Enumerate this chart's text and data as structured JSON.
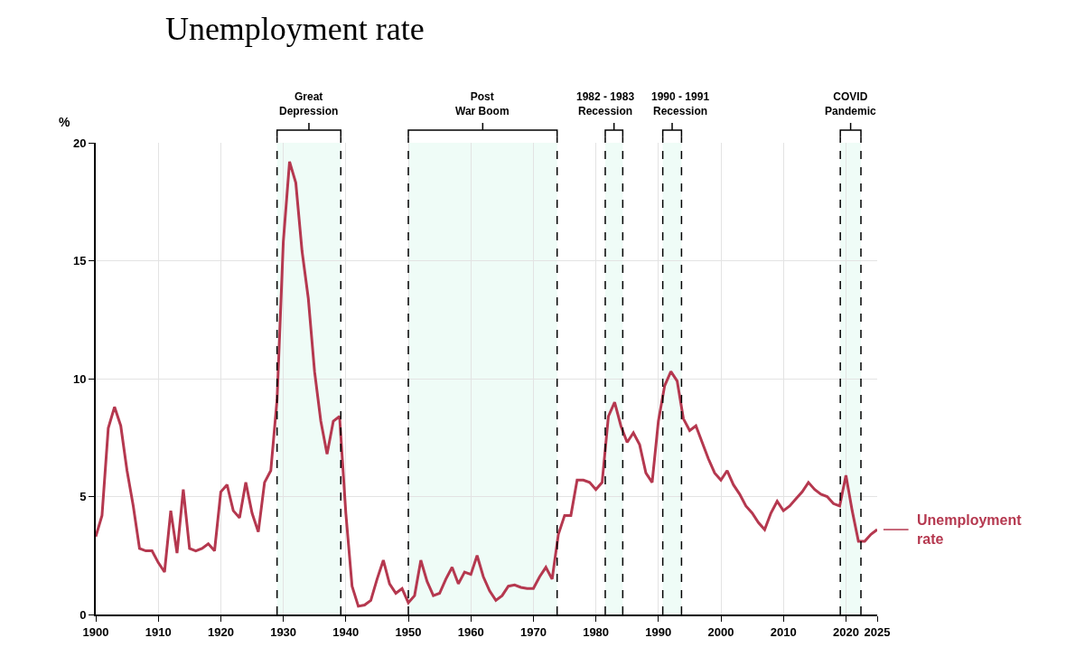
{
  "chart_data": {
    "type": "line",
    "title": "Unemployment rate",
    "ylabel": "%",
    "x": [
      1900,
      1901,
      1902,
      1903,
      1904,
      1905,
      1906,
      1907,
      1908,
      1909,
      1910,
      1911,
      1912,
      1913,
      1914,
      1915,
      1916,
      1917,
      1918,
      1919,
      1920,
      1921,
      1922,
      1923,
      1924,
      1925,
      1926,
      1927,
      1928,
      1929,
      1930,
      1931,
      1932,
      1933,
      1934,
      1935,
      1936,
      1937,
      1938,
      1939,
      1940,
      1941,
      1942,
      1943,
      1944,
      1945,
      1946,
      1947,
      1948,
      1949,
      1950,
      1951,
      1952,
      1953,
      1954,
      1955,
      1956,
      1957,
      1958,
      1959,
      1960,
      1961,
      1962,
      1963,
      1964,
      1965,
      1966,
      1967,
      1968,
      1969,
      1970,
      1971,
      1972,
      1973,
      1974,
      1975,
      1976,
      1977,
      1978,
      1979,
      1980,
      1981,
      1982,
      1983,
      1984,
      1985,
      1986,
      1987,
      1988,
      1989,
      1990,
      1991,
      1992,
      1993,
      1994,
      1995,
      1996,
      1997,
      1998,
      1999,
      2000,
      2001,
      2002,
      2003,
      2004,
      2005,
      2006,
      2007,
      2008,
      2009,
      2010,
      2011,
      2012,
      2013,
      2014,
      2015,
      2016,
      2017,
      2018,
      2019,
      2020,
      2021,
      2022,
      2023,
      2024,
      2025
    ],
    "series": [
      {
        "name": "Unemployment rate",
        "color": "#b5384f",
        "values": [
          3.3,
          4.2,
          7.9,
          8.8,
          8.0,
          6.1,
          4.6,
          2.8,
          2.7,
          2.7,
          2.2,
          1.8,
          4.4,
          2.6,
          5.3,
          2.8,
          2.7,
          2.8,
          3.0,
          2.7,
          5.2,
          5.5,
          4.4,
          4.1,
          5.6,
          4.3,
          3.5,
          5.6,
          6.1,
          9.1,
          15.8,
          19.2,
          18.3,
          15.4,
          13.4,
          10.3,
          8.2,
          6.8,
          8.2,
          8.4,
          4.3,
          1.2,
          0.35,
          0.4,
          0.6,
          1.5,
          2.3,
          1.3,
          0.9,
          1.1,
          0.5,
          0.8,
          2.3,
          1.4,
          0.8,
          0.9,
          1.5,
          2.0,
          1.3,
          1.8,
          1.7,
          2.5,
          1.6,
          1.0,
          0.6,
          0.8,
          1.2,
          1.25,
          1.15,
          1.1,
          1.1,
          1.6,
          2.0,
          1.5,
          3.4,
          4.2,
          4.2,
          5.7,
          5.7,
          5.6,
          5.3,
          5.6,
          8.4,
          9.0,
          8.0,
          7.3,
          7.7,
          7.2,
          6.0,
          5.6,
          8.2,
          9.7,
          10.3,
          9.9,
          8.3,
          7.8,
          8.0,
          7.3,
          6.6,
          6.0,
          5.7,
          6.1,
          5.5,
          5.1,
          4.6,
          4.3,
          3.9,
          3.6,
          4.3,
          4.8,
          4.4,
          4.6,
          4.9,
          5.2,
          5.6,
          5.3,
          5.1,
          5.0,
          4.7,
          4.6,
          5.9,
          4.4,
          3.1,
          3.1,
          3.4,
          3.6
        ]
      }
    ],
    "xlim": [
      1900,
      2025
    ],
    "xticks": [
      1900,
      1910,
      1920,
      1930,
      1940,
      1950,
      1960,
      1970,
      1980,
      1990,
      2000,
      2010,
      2020,
      2025
    ],
    "ylim": [
      0,
      20
    ],
    "yticks": [
      0,
      5,
      10,
      15,
      20
    ],
    "bands": [
      {
        "axis": "x",
        "from": 1929,
        "to": 1939.2,
        "label": "Great\nDepression",
        "color": "#effcf7"
      },
      {
        "axis": "x",
        "from": 1950,
        "to": 1973.8,
        "label": "Post\nWar Boom",
        "color": "#effcf7"
      },
      {
        "axis": "x",
        "from": 1981.5,
        "to": 1984.3,
        "label": "1982 - 1983\nRecession",
        "color": "#effcf7"
      },
      {
        "axis": "x",
        "from": 1990.7,
        "to": 1993.7,
        "label": "1990 - 1991\nRecession",
        "color": "#effcf7"
      },
      {
        "axis": "x",
        "from": 2019.1,
        "to": 2022.4,
        "label": "COVID\nPandemic",
        "color": "#effcf7"
      }
    ],
    "ref_lines": [
      {
        "axis": "x",
        "value": 1929,
        "color": "#000000",
        "line_style": "dashed"
      },
      {
        "axis": "x",
        "value": 1939.2,
        "color": "#000000",
        "line_style": "dashed"
      },
      {
        "axis": "x",
        "value": 1950,
        "color": "#000000",
        "line_style": "dashed"
      },
      {
        "axis": "x",
        "value": 1973.8,
        "color": "#000000",
        "line_style": "dashed"
      },
      {
        "axis": "x",
        "value": 1981.5,
        "color": "#000000",
        "line_style": "dashed"
      },
      {
        "axis": "x",
        "value": 1984.3,
        "color": "#000000",
        "line_style": "dashed"
      },
      {
        "axis": "x",
        "value": 1990.7,
        "color": "#000000",
        "line_style": "dashed"
      },
      {
        "axis": "x",
        "value": 1993.7,
        "color": "#000000",
        "line_style": "dashed"
      },
      {
        "axis": "x",
        "value": 2019.1,
        "color": "#000000",
        "line_style": "dashed"
      },
      {
        "axis": "x",
        "value": 2022.4,
        "color": "#000000",
        "line_style": "dashed"
      }
    ],
    "grid": true,
    "line_style": "solid",
    "marker": "none"
  }
}
